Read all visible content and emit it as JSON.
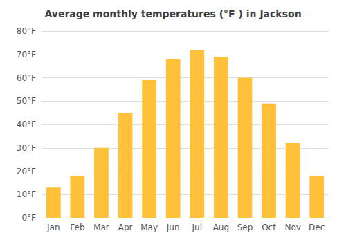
{
  "chart_data": {
    "type": "bar",
    "title": "Average monthly temperatures (°F ) in Jackson",
    "categories": [
      "Jan",
      "Feb",
      "Mar",
      "Apr",
      "May",
      "Jun",
      "Jul",
      "Aug",
      "Sep",
      "Oct",
      "Nov",
      "Dec"
    ],
    "values": [
      13,
      18,
      30,
      45,
      59,
      68,
      72,
      69,
      60,
      49,
      32,
      18
    ],
    "color": "#FFC03A",
    "ylim": [
      0,
      80
    ],
    "yticks": [
      {
        "value": 0,
        "label": "0°F"
      },
      {
        "value": 10,
        "label": "10°F"
      },
      {
        "value": 20,
        "label": "20°F"
      },
      {
        "value": 30,
        "label": "30°F"
      },
      {
        "value": 40,
        "label": "40°F"
      },
      {
        "value": 50,
        "label": "50°F"
      },
      {
        "value": 60,
        "label": "60°F"
      },
      {
        "value": 70,
        "label": "70°F"
      },
      {
        "value": 80,
        "label": "80°F"
      }
    ],
    "grid": true
  }
}
